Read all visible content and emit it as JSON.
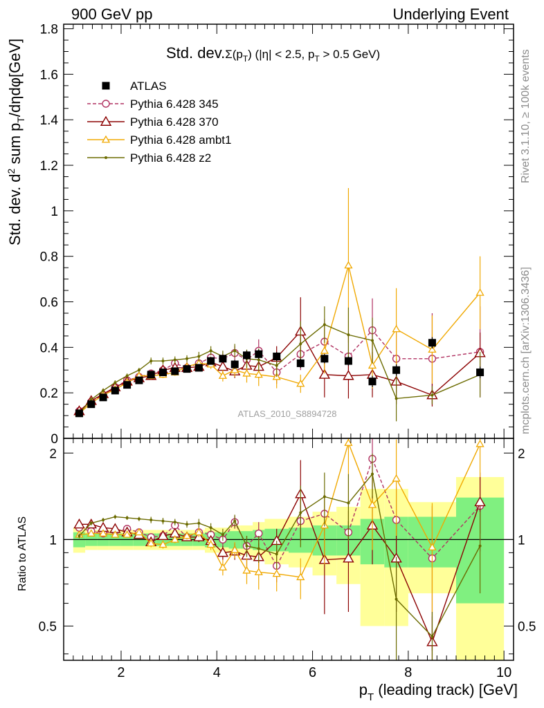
{
  "header": {
    "left": "900 GeV pp",
    "right": "Underlying Event"
  },
  "side": {
    "rivet": "Rivet 3.1.10, ≥ 100k events",
    "mcplots": "mcplots.cern.ch [arXiv:1306.3436]"
  },
  "colors": {
    "ATLAS": "#000000",
    "Pythia 6.428 345": "#b03060",
    "Pythia 6.428 370": "#8b0000",
    "Pythia 6.428 ambt1": "#f0a800",
    "Pythia 6.428 z2": "#6b6b00",
    "band_inner": "#80f080",
    "band_outer": "#ffff99"
  },
  "chart_data": [
    {
      "type": "line",
      "title_text": "Std. dev.",
      "title_sigma": "Σ(p",
      "title_sigma_sub": "T",
      "title_cut": ") (|η| < 2.5, p",
      "title_cut_sub": "T",
      "title_end": " > 0.5 GeV)",
      "ylabel_a": "Std. dev. d",
      "ylabel_sup": "2",
      "ylabel_b": " sum p",
      "ylabel_sub": "T",
      "ylabel_c": "/dηdφ[GeV]",
      "watermark": "ATLAS_2010_S8894728",
      "xlim": [
        0.8,
        10.2
      ],
      "ylim": [
        0,
        1.82
      ],
      "yticks": [
        "0",
        "0.2",
        "0.4",
        "0.6",
        "0.8",
        "1",
        "1.2",
        "1.4",
        "1.6",
        "1.8"
      ],
      "legend_position": "top-left",
      "x": [
        1.125,
        1.375,
        1.625,
        1.875,
        2.125,
        2.375,
        2.625,
        2.875,
        3.125,
        3.375,
        3.625,
        3.875,
        4.125,
        4.375,
        4.625,
        4.875,
        5.25,
        5.75,
        6.25,
        6.75,
        7.25,
        7.75,
        8.5,
        9.5
      ],
      "series": [
        {
          "name": "ATLAS",
          "marker": "square",
          "values": [
            0.11,
            0.15,
            0.18,
            0.21,
            0.235,
            0.255,
            0.28,
            0.29,
            0.295,
            0.305,
            0.31,
            0.34,
            0.35,
            0.325,
            0.365,
            0.37,
            0.36,
            0.33,
            0.35,
            0.34,
            0.25,
            0.3,
            0.42,
            0.29
          ],
          "errors": [
            0.01,
            0.01,
            0.01,
            0.01,
            0.01,
            0.01,
            0.01,
            0.01,
            0.01,
            0.01,
            0.01,
            0.015,
            0.015,
            0.02,
            0.02,
            0.02,
            0.02,
            0.02,
            0.02,
            0.02,
            0.025,
            0.025,
            0.025,
            0.025
          ]
        },
        {
          "name": "Pythia 6.428 345",
          "marker": "circle",
          "dashed": true,
          "values": [
            0.12,
            0.16,
            0.19,
            0.225,
            0.255,
            0.27,
            0.285,
            0.3,
            0.33,
            0.31,
            0.33,
            0.355,
            0.35,
            0.375,
            0.345,
            0.385,
            0.29,
            0.37,
            0.425,
            0.36,
            0.475,
            0.35,
            0.35,
            0.38
          ],
          "errors": [
            0.01,
            0.01,
            0.01,
            0.01,
            0.01,
            0.01,
            0.015,
            0.015,
            0.015,
            0.015,
            0.02,
            0.02,
            0.025,
            0.03,
            0.04,
            0.05,
            0.05,
            0.07,
            0.1,
            0.1,
            0.14,
            0.15,
            0.2,
            0.2
          ]
        },
        {
          "name": "Pythia 6.428 370",
          "marker": "triangle",
          "values": [
            0.12,
            0.165,
            0.195,
            0.225,
            0.25,
            0.265,
            0.275,
            0.3,
            0.31,
            0.31,
            0.315,
            0.335,
            0.315,
            0.295,
            0.32,
            0.315,
            0.355,
            0.47,
            0.28,
            0.275,
            0.28,
            0.25,
            0.19,
            0.375
          ],
          "errors": [
            0.01,
            0.01,
            0.01,
            0.01,
            0.01,
            0.01,
            0.015,
            0.015,
            0.015,
            0.015,
            0.02,
            0.02,
            0.025,
            0.03,
            0.04,
            0.05,
            0.05,
            0.15,
            0.1,
            0.1,
            0.1,
            0.1,
            0.05,
            0.09
          ]
        },
        {
          "name": "Pythia 6.428 ambt1",
          "marker": "triangle-small",
          "values": [
            0.11,
            0.155,
            0.19,
            0.215,
            0.245,
            0.275,
            0.275,
            0.28,
            0.29,
            0.315,
            0.33,
            0.325,
            0.275,
            0.3,
            0.285,
            0.28,
            0.27,
            0.24,
            0.385,
            0.76,
            0.32,
            0.48,
            0.39,
            0.64
          ],
          "errors": [
            0.01,
            0.01,
            0.01,
            0.01,
            0.01,
            0.01,
            0.015,
            0.015,
            0.015,
            0.015,
            0.02,
            0.02,
            0.025,
            0.03,
            0.04,
            0.05,
            0.05,
            0.04,
            0.1,
            0.34,
            0.1,
            0.18,
            0.15,
            0.16
          ]
        },
        {
          "name": "Pythia 6.428 z2",
          "marker": "dot",
          "values": [
            0.11,
            0.17,
            0.21,
            0.245,
            0.275,
            0.3,
            0.34,
            0.34,
            0.345,
            0.35,
            0.36,
            0.385,
            0.36,
            0.385,
            0.35,
            0.345,
            0.32,
            0.415,
            0.5,
            0.455,
            0.43,
            0.175,
            0.19,
            0.28
          ],
          "errors": [
            0.01,
            0.01,
            0.01,
            0.01,
            0.01,
            0.01,
            0.015,
            0.015,
            0.015,
            0.015,
            0.02,
            0.02,
            0.025,
            0.03,
            0.04,
            0.05,
            0.05,
            0.1,
            0.08,
            0.12,
            0.1,
            0.1,
            0.04,
            0.1
          ]
        }
      ]
    },
    {
      "type": "line",
      "ylabel": "Ratio to ATLAS",
      "xlabel_a": "p",
      "xlabel_sub": "T",
      "xlabel_b": " (leading track) [GeV]",
      "xlim": [
        0.8,
        10.2
      ],
      "ylim": [
        0.38,
        2.25
      ],
      "yscale": "log",
      "xticks": [
        "2",
        "4",
        "6",
        "8",
        "10"
      ],
      "yticks": [
        "0.5",
        "1",
        "2"
      ],
      "x": [
        1.125,
        1.375,
        1.625,
        1.875,
        2.125,
        2.375,
        2.625,
        2.875,
        3.125,
        3.375,
        3.625,
        3.875,
        4.125,
        4.375,
        4.625,
        4.875,
        5.25,
        5.75,
        6.25,
        6.75,
        7.25,
        7.75,
        8.5,
        9.5
      ],
      "band_edges": [
        1.0,
        1.25,
        1.5,
        1.75,
        2.0,
        2.25,
        2.5,
        2.75,
        3.0,
        3.25,
        3.5,
        3.75,
        4.0,
        4.25,
        4.5,
        4.75,
        5.0,
        5.5,
        6.0,
        6.5,
        7.0,
        7.5,
        8.0,
        9.0,
        10.0
      ],
      "band_inner": [
        0.06,
        0.05,
        0.05,
        0.05,
        0.05,
        0.05,
        0.05,
        0.05,
        0.05,
        0.05,
        0.05,
        0.06,
        0.06,
        0.07,
        0.07,
        0.08,
        0.09,
        0.1,
        0.12,
        0.12,
        0.18,
        0.2,
        0.2,
        0.4
      ],
      "band_outer": [
        0.1,
        0.08,
        0.08,
        0.08,
        0.08,
        0.08,
        0.08,
        0.08,
        0.08,
        0.08,
        0.08,
        0.1,
        0.1,
        0.12,
        0.12,
        0.15,
        0.18,
        0.2,
        0.25,
        0.3,
        0.5,
        0.5,
        0.35,
        0.65
      ],
      "series": [
        {
          "name": "Pythia 6.428 345",
          "marker": "circle",
          "dashed": true,
          "values": [
            1.1,
            1.07,
            1.05,
            1.07,
            1.09,
            1.06,
            1.02,
            1.03,
            1.12,
            1.02,
            1.06,
            1.04,
            1.0,
            1.15,
            0.95,
            1.05,
            0.81,
            1.16,
            1.23,
            1.06,
            1.91,
            1.17,
            0.86,
            1.31
          ],
          "errors": [
            0.02,
            0.02,
            0.02,
            0.02,
            0.02,
            0.02,
            0.03,
            0.03,
            0.03,
            0.03,
            0.04,
            0.04,
            0.05,
            0.06,
            0.08,
            0.1,
            0.1,
            0.15,
            0.2,
            0.2,
            0.55,
            0.35,
            0.45,
            0.4
          ]
        },
        {
          "name": "Pythia 6.428 370",
          "marker": "triangle",
          "values": [
            1.13,
            1.13,
            1.1,
            1.09,
            1.06,
            1.04,
            0.98,
            1.03,
            1.05,
            1.02,
            1.02,
            0.99,
            0.9,
            0.91,
            0.88,
            0.87,
            0.99,
            1.44,
            0.85,
            0.86,
            1.12,
            0.86,
            0.44,
            1.35
          ],
          "errors": [
            0.02,
            0.02,
            0.02,
            0.02,
            0.02,
            0.02,
            0.03,
            0.03,
            0.03,
            0.03,
            0.04,
            0.04,
            0.05,
            0.06,
            0.08,
            0.1,
            0.1,
            0.45,
            0.3,
            0.3,
            0.3,
            0.3,
            0.1,
            0.3
          ]
        },
        {
          "name": "Pythia 6.428 ambt1",
          "marker": "triangle-small",
          "values": [
            1.04,
            1.05,
            1.05,
            1.04,
            1.04,
            1.06,
            0.97,
            0.96,
            1.0,
            1.03,
            1.06,
            0.96,
            0.8,
            0.92,
            0.78,
            0.77,
            0.76,
            0.74,
            1.12,
            2.17,
            1.32,
            1.63,
            0.94,
            2.15
          ],
          "errors": [
            0.02,
            0.02,
            0.02,
            0.02,
            0.02,
            0.02,
            0.03,
            0.03,
            0.03,
            0.03,
            0.04,
            0.04,
            0.05,
            0.06,
            0.08,
            0.1,
            0.1,
            0.12,
            0.3,
            1.0,
            0.4,
            0.6,
            0.4,
            0.5
          ]
        },
        {
          "name": "Pythia 6.428 z2",
          "marker": "dot",
          "values": [
            1.03,
            1.14,
            1.17,
            1.2,
            1.19,
            1.18,
            1.17,
            1.16,
            1.15,
            1.13,
            1.14,
            1.1,
            1.04,
            1.16,
            0.95,
            0.93,
            0.89,
            1.24,
            1.41,
            1.34,
            1.69,
            0.62,
            0.46,
            0.95
          ],
          "errors": [
            0.02,
            0.02,
            0.02,
            0.02,
            0.02,
            0.02,
            0.03,
            0.03,
            0.03,
            0.03,
            0.04,
            0.04,
            0.05,
            0.06,
            0.08,
            0.1,
            0.1,
            0.3,
            0.3,
            0.35,
            0.3,
            0.25,
            0.1,
            0.3
          ]
        }
      ]
    }
  ]
}
